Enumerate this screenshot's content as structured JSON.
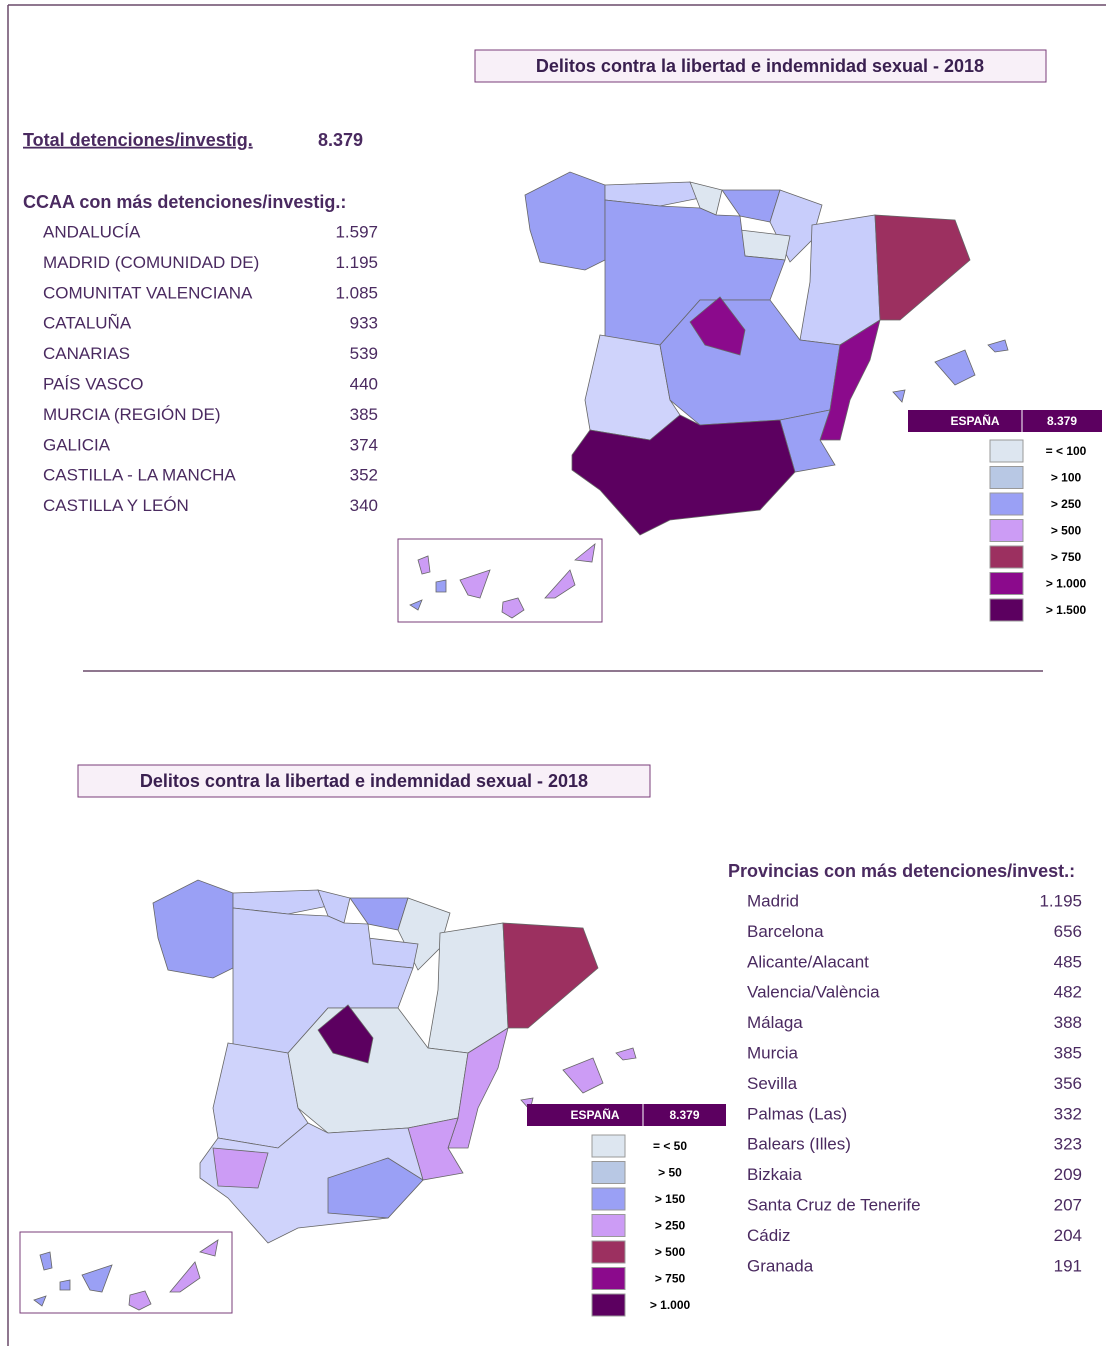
{
  "top": {
    "title": "Delitos contra la libertad e indemnidad sexual - 2018",
    "total_label": "Total detenciones/investig.",
    "total_value": "8.379",
    "list_heading": "CCAA con más detenciones/investig.:",
    "rows": [
      [
        "ANDALUCÍA",
        "1.597"
      ],
      [
        "MADRID (COMUNIDAD DE)",
        "1.195"
      ],
      [
        "COMUNITAT VALENCIANA",
        "1.085"
      ],
      [
        "CATALUÑA",
        "933"
      ],
      [
        "CANARIAS",
        "539"
      ],
      [
        "PAÍS VASCO",
        "440"
      ],
      [
        "MURCIA (REGIÓN DE)",
        "385"
      ],
      [
        "GALICIA",
        "374"
      ],
      [
        "CASTILLA - LA MANCHA",
        "352"
      ],
      [
        "CASTILLA Y LEÓN",
        "340"
      ]
    ],
    "legend": {
      "header": [
        "ESPAÑA",
        "8.379"
      ],
      "items": [
        {
          "label": "= < 100",
          "color": "#dde6f0"
        },
        {
          "label": "> 100",
          "color": "#b8c8e4"
        },
        {
          "label": "> 250",
          "color": "#9aa0f5"
        },
        {
          "label": "> 500",
          "color": "#cc9cf5"
        },
        {
          "label": "> 750",
          "color": "#9c3060"
        },
        {
          "label": "> 1.000",
          "color": "#8b0a8c"
        },
        {
          "label": "> 1.500",
          "color": "#5c0060"
        }
      ]
    }
  },
  "bottom": {
    "title": "Delitos contra la libertad e indemnidad sexual - 2018",
    "list_heading": "Provincias con más detenciones/invest.:",
    "rows": [
      [
        "Madrid",
        "1.195"
      ],
      [
        "Barcelona",
        "656"
      ],
      [
        "Alicante/Alacant",
        "485"
      ],
      [
        "Valencia/València",
        "482"
      ],
      [
        "Málaga",
        "388"
      ],
      [
        "Murcia",
        "385"
      ],
      [
        "Sevilla",
        "356"
      ],
      [
        "Palmas (Las)",
        "332"
      ],
      [
        "Balears (Illes)",
        "323"
      ],
      [
        "Bizkaia",
        "209"
      ],
      [
        "Santa Cruz de Tenerife",
        "207"
      ],
      [
        "Cádiz",
        "204"
      ],
      [
        "Granada",
        "191"
      ]
    ],
    "legend": {
      "header": [
        "ESPAÑA",
        "8.379"
      ],
      "items": [
        {
          "label": "= < 50",
          "color": "#dde6f0"
        },
        {
          "label": "> 50",
          "color": "#b8c8e4"
        },
        {
          "label": "> 150",
          "color": "#9aa0f5"
        },
        {
          "label": "> 250",
          "color": "#cc9cf5"
        },
        {
          "label": "> 500",
          "color": "#9c3060"
        },
        {
          "label": "> 750",
          "color": "#8b0a8c"
        },
        {
          "label": "> 1.000",
          "color": "#5c0060"
        }
      ]
    }
  }
}
